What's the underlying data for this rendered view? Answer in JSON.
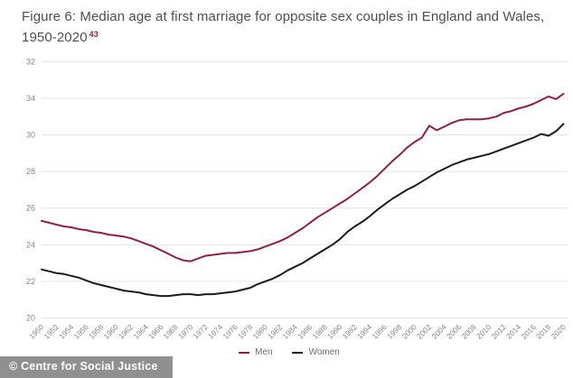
{
  "figure": {
    "title_line1": "Figure 6: Median age at first marriage for opposite sex couples in England and Wales,",
    "title_line2": "1950-2020",
    "footnote_ref": "43"
  },
  "legend": {
    "items": [
      {
        "label": "Men",
        "color": "#8f2041"
      },
      {
        "label": "Women",
        "color": "#1b1b1b"
      }
    ]
  },
  "footer": {
    "attribution": "© Centre for Social Justice"
  },
  "colors": {
    "men_line": "#8f2041",
    "women_line": "#1b1b1b",
    "gridline": "#e4e4e4",
    "tick_label": "#8a8a8a",
    "title_text": "#4f4f4f",
    "footer_bg": "#909090"
  },
  "chart_data": {
    "type": "line",
    "title": "Median age at first marriage for opposite sex couples in England and Wales, 1950-2020",
    "xlabel": "",
    "ylabel": "",
    "grid": "on",
    "legend_position": "bottom",
    "x_start_year": 1950,
    "x_end_year": 2020,
    "x_tick_labels": [
      "1950",
      "1952",
      "1954",
      "1956",
      "1958",
      "1960",
      "1962",
      "1964",
      "1966",
      "1968",
      "1970",
      "1972",
      "1974",
      "1976",
      "1978",
      "1980",
      "1982",
      "1984",
      "1986",
      "1988",
      "1990",
      "1992",
      "1994",
      "1996",
      "1998",
      "2000",
      "2002",
      "2004",
      "2006",
      "2008",
      "2010",
      "2012",
      "2014",
      "2016",
      "2018",
      "2020"
    ],
    "y_tick_labels_top_to_bottom": [
      "32",
      "34",
      "30",
      "28",
      "26",
      "24",
      "22",
      "20"
    ],
    "y_positional_range": [
      20,
      34
    ],
    "series": [
      {
        "name": "Men",
        "color": "#8f2041",
        "values": [
          25.3,
          25.2,
          25.1,
          25.0,
          24.95,
          24.85,
          24.8,
          24.7,
          24.65,
          24.55,
          24.5,
          24.45,
          24.35,
          24.2,
          24.05,
          23.9,
          23.7,
          23.5,
          23.3,
          23.15,
          23.1,
          23.25,
          23.4,
          23.45,
          23.5,
          23.55,
          23.55,
          23.6,
          23.65,
          23.75,
          23.9,
          24.05,
          24.2,
          24.4,
          24.65,
          24.9,
          25.2,
          25.5,
          25.75,
          26.0,
          26.25,
          26.5,
          26.8,
          27.1,
          27.4,
          27.75,
          28.15,
          28.55,
          28.9,
          29.3,
          29.6,
          29.85,
          30.5,
          30.25,
          30.45,
          30.65,
          30.8,
          30.85,
          30.85,
          30.85,
          30.9,
          31.0,
          31.2,
          31.3,
          31.45,
          31.55,
          31.7,
          31.9,
          32.1,
          31.95,
          32.25
        ]
      },
      {
        "name": "Women",
        "color": "#1b1b1b",
        "values": [
          22.65,
          22.55,
          22.45,
          22.4,
          22.3,
          22.2,
          22.05,
          21.9,
          21.8,
          21.7,
          21.6,
          21.5,
          21.45,
          21.4,
          21.3,
          21.25,
          21.2,
          21.2,
          21.25,
          21.3,
          21.3,
          21.25,
          21.3,
          21.3,
          21.35,
          21.4,
          21.45,
          21.55,
          21.65,
          21.85,
          22.0,
          22.15,
          22.35,
          22.6,
          22.8,
          23.0,
          23.25,
          23.5,
          23.75,
          24.0,
          24.3,
          24.7,
          25.0,
          25.25,
          25.55,
          25.9,
          26.2,
          26.5,
          26.75,
          27.0,
          27.2,
          27.45,
          27.7,
          27.95,
          28.15,
          28.35,
          28.5,
          28.65,
          28.75,
          28.85,
          28.95,
          29.1,
          29.25,
          29.4,
          29.55,
          29.7,
          29.85,
          30.05,
          29.95,
          30.2,
          30.6
        ]
      }
    ]
  }
}
